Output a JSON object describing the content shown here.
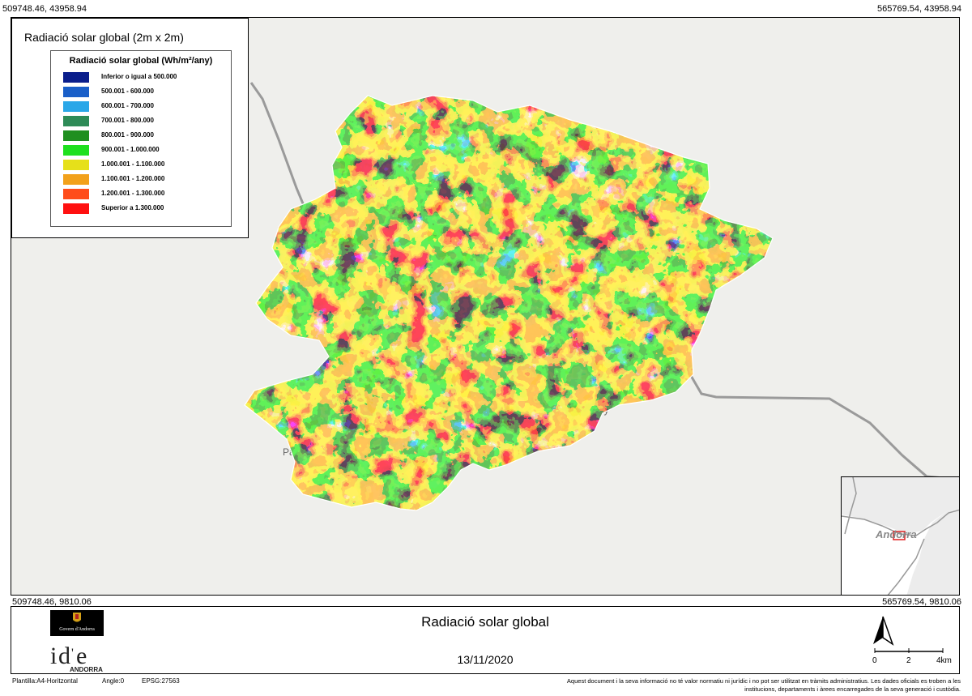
{
  "corners": {
    "top_left": "509748.46, 43958.94",
    "top_right": "565769.54, 43958.94",
    "bottom_left": "509748.46, 9810.06",
    "bottom_right": "565769.54, 9810.06"
  },
  "legend": {
    "title": "Radiació solar global (2m x 2m)",
    "subtitle": "Radiació solar global (Wh/m²/any)",
    "classes": [
      {
        "label": "Inferior o igual a 500.000",
        "color": "#0a1e8c"
      },
      {
        "label": "500.001 - 600.000",
        "color": "#1a5fc8"
      },
      {
        "label": "600.001 - 700.000",
        "color": "#2aa7e8"
      },
      {
        "label": "700.001 - 800.000",
        "color": "#2e8b57"
      },
      {
        "label": "800.001 - 900.000",
        "color": "#1f8f1f"
      },
      {
        "label": "900.001 - 1.000.000",
        "color": "#1ee01e"
      },
      {
        "label": "1.000.001 - 1.100.000",
        "color": "#e6e01a"
      },
      {
        "label": "1.100.001 - 1.200.000",
        "color": "#f2a11a"
      },
      {
        "label": "1.200.001 - 1.300.000",
        "color": "#ff4c1a"
      },
      {
        "label": "Superior a 1.300.000",
        "color": "#ff1010"
      }
    ]
  },
  "map": {
    "place_labels": [
      "Pa",
      "ny"
    ],
    "colors": {
      "background": "#efefec",
      "road": "#9a9a9a"
    }
  },
  "inset": {
    "label": "Andorra",
    "highlight_color": "#e02020"
  },
  "footer": {
    "title": "Radiació solar global",
    "date": "13/11/2020",
    "govern_logo_text": "Govern d'Andorra",
    "ide_logo_text": "ANDORRA",
    "scale_ticks": [
      "0",
      "2",
      "4km"
    ],
    "template": "Plantilla:A4-Horitzontal",
    "angle": "Angle:0",
    "epsg": "EPSG:27563",
    "disclaimer_line1": "Aquest document i la seva informació no té valor normatiu ni jurídic i no pot ser utilitzat en tràmits administratius. Les dades oficials es troben a les",
    "disclaimer_line2": "institucions, departaments i àrees encarregades de la seva generació i custòdia."
  }
}
